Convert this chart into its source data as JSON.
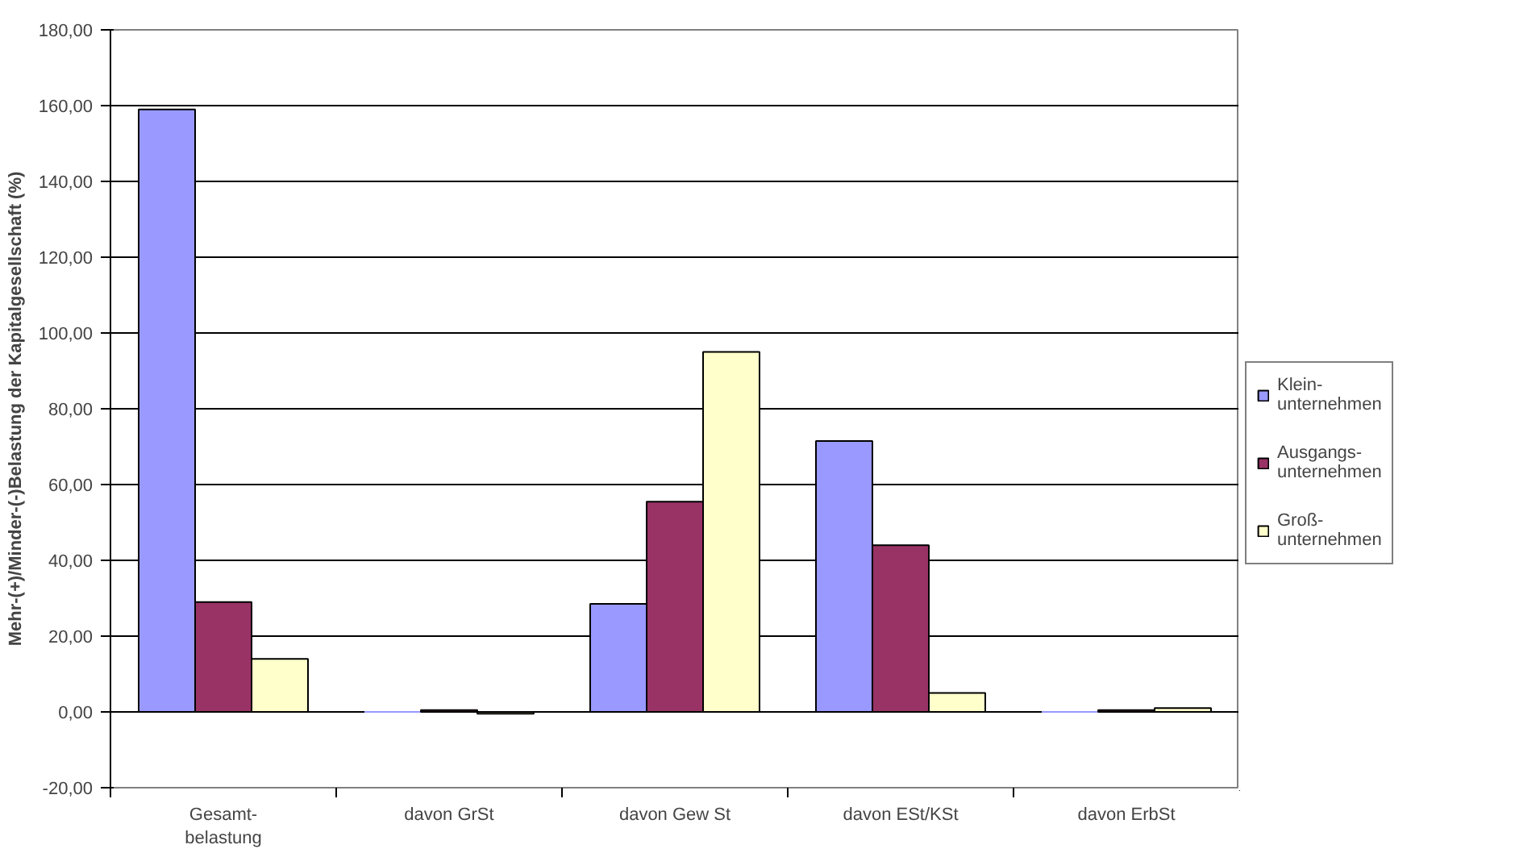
{
  "chart_data": {
    "type": "bar",
    "ylabel": "Mehr-(+)/Minder-(-)Belastung der Kapitalgesellschaft (%)",
    "categories": [
      "Gesamt-\nbelastung",
      "davon GrSt",
      "davon Gew St",
      "davon ESt/KSt",
      "davon ErbSt"
    ],
    "series": [
      {
        "name": "Klein-\nunternehmen",
        "color": "#9999ff",
        "values": [
          159,
          0,
          28.5,
          71.5,
          0
        ]
      },
      {
        "name": "Ausgangs-\nunternehmen",
        "color": "#993366",
        "values": [
          29,
          0.5,
          55.5,
          44,
          0.5
        ]
      },
      {
        "name": "Groß-\nunternehmen",
        "color": "#ffffcc",
        "values": [
          14,
          -0.5,
          95,
          5,
          1
        ]
      }
    ],
    "ylim": [
      -20,
      180
    ],
    "yticks": [
      {
        "value": -20,
        "label": "-20,00"
      },
      {
        "value": 0,
        "label": "0,00"
      },
      {
        "value": 20,
        "label": "20,00"
      },
      {
        "value": 40,
        "label": "40,00"
      },
      {
        "value": 60,
        "label": "60,00"
      },
      {
        "value": 80,
        "label": "80,00"
      },
      {
        "value": 100,
        "label": "100,00"
      },
      {
        "value": 120,
        "label": "120,00"
      },
      {
        "value": 140,
        "label": "140,00"
      },
      {
        "value": 160,
        "label": "160,00"
      },
      {
        "value": 180,
        "label": "180,00"
      }
    ],
    "grid": "y",
    "legend": "right"
  }
}
